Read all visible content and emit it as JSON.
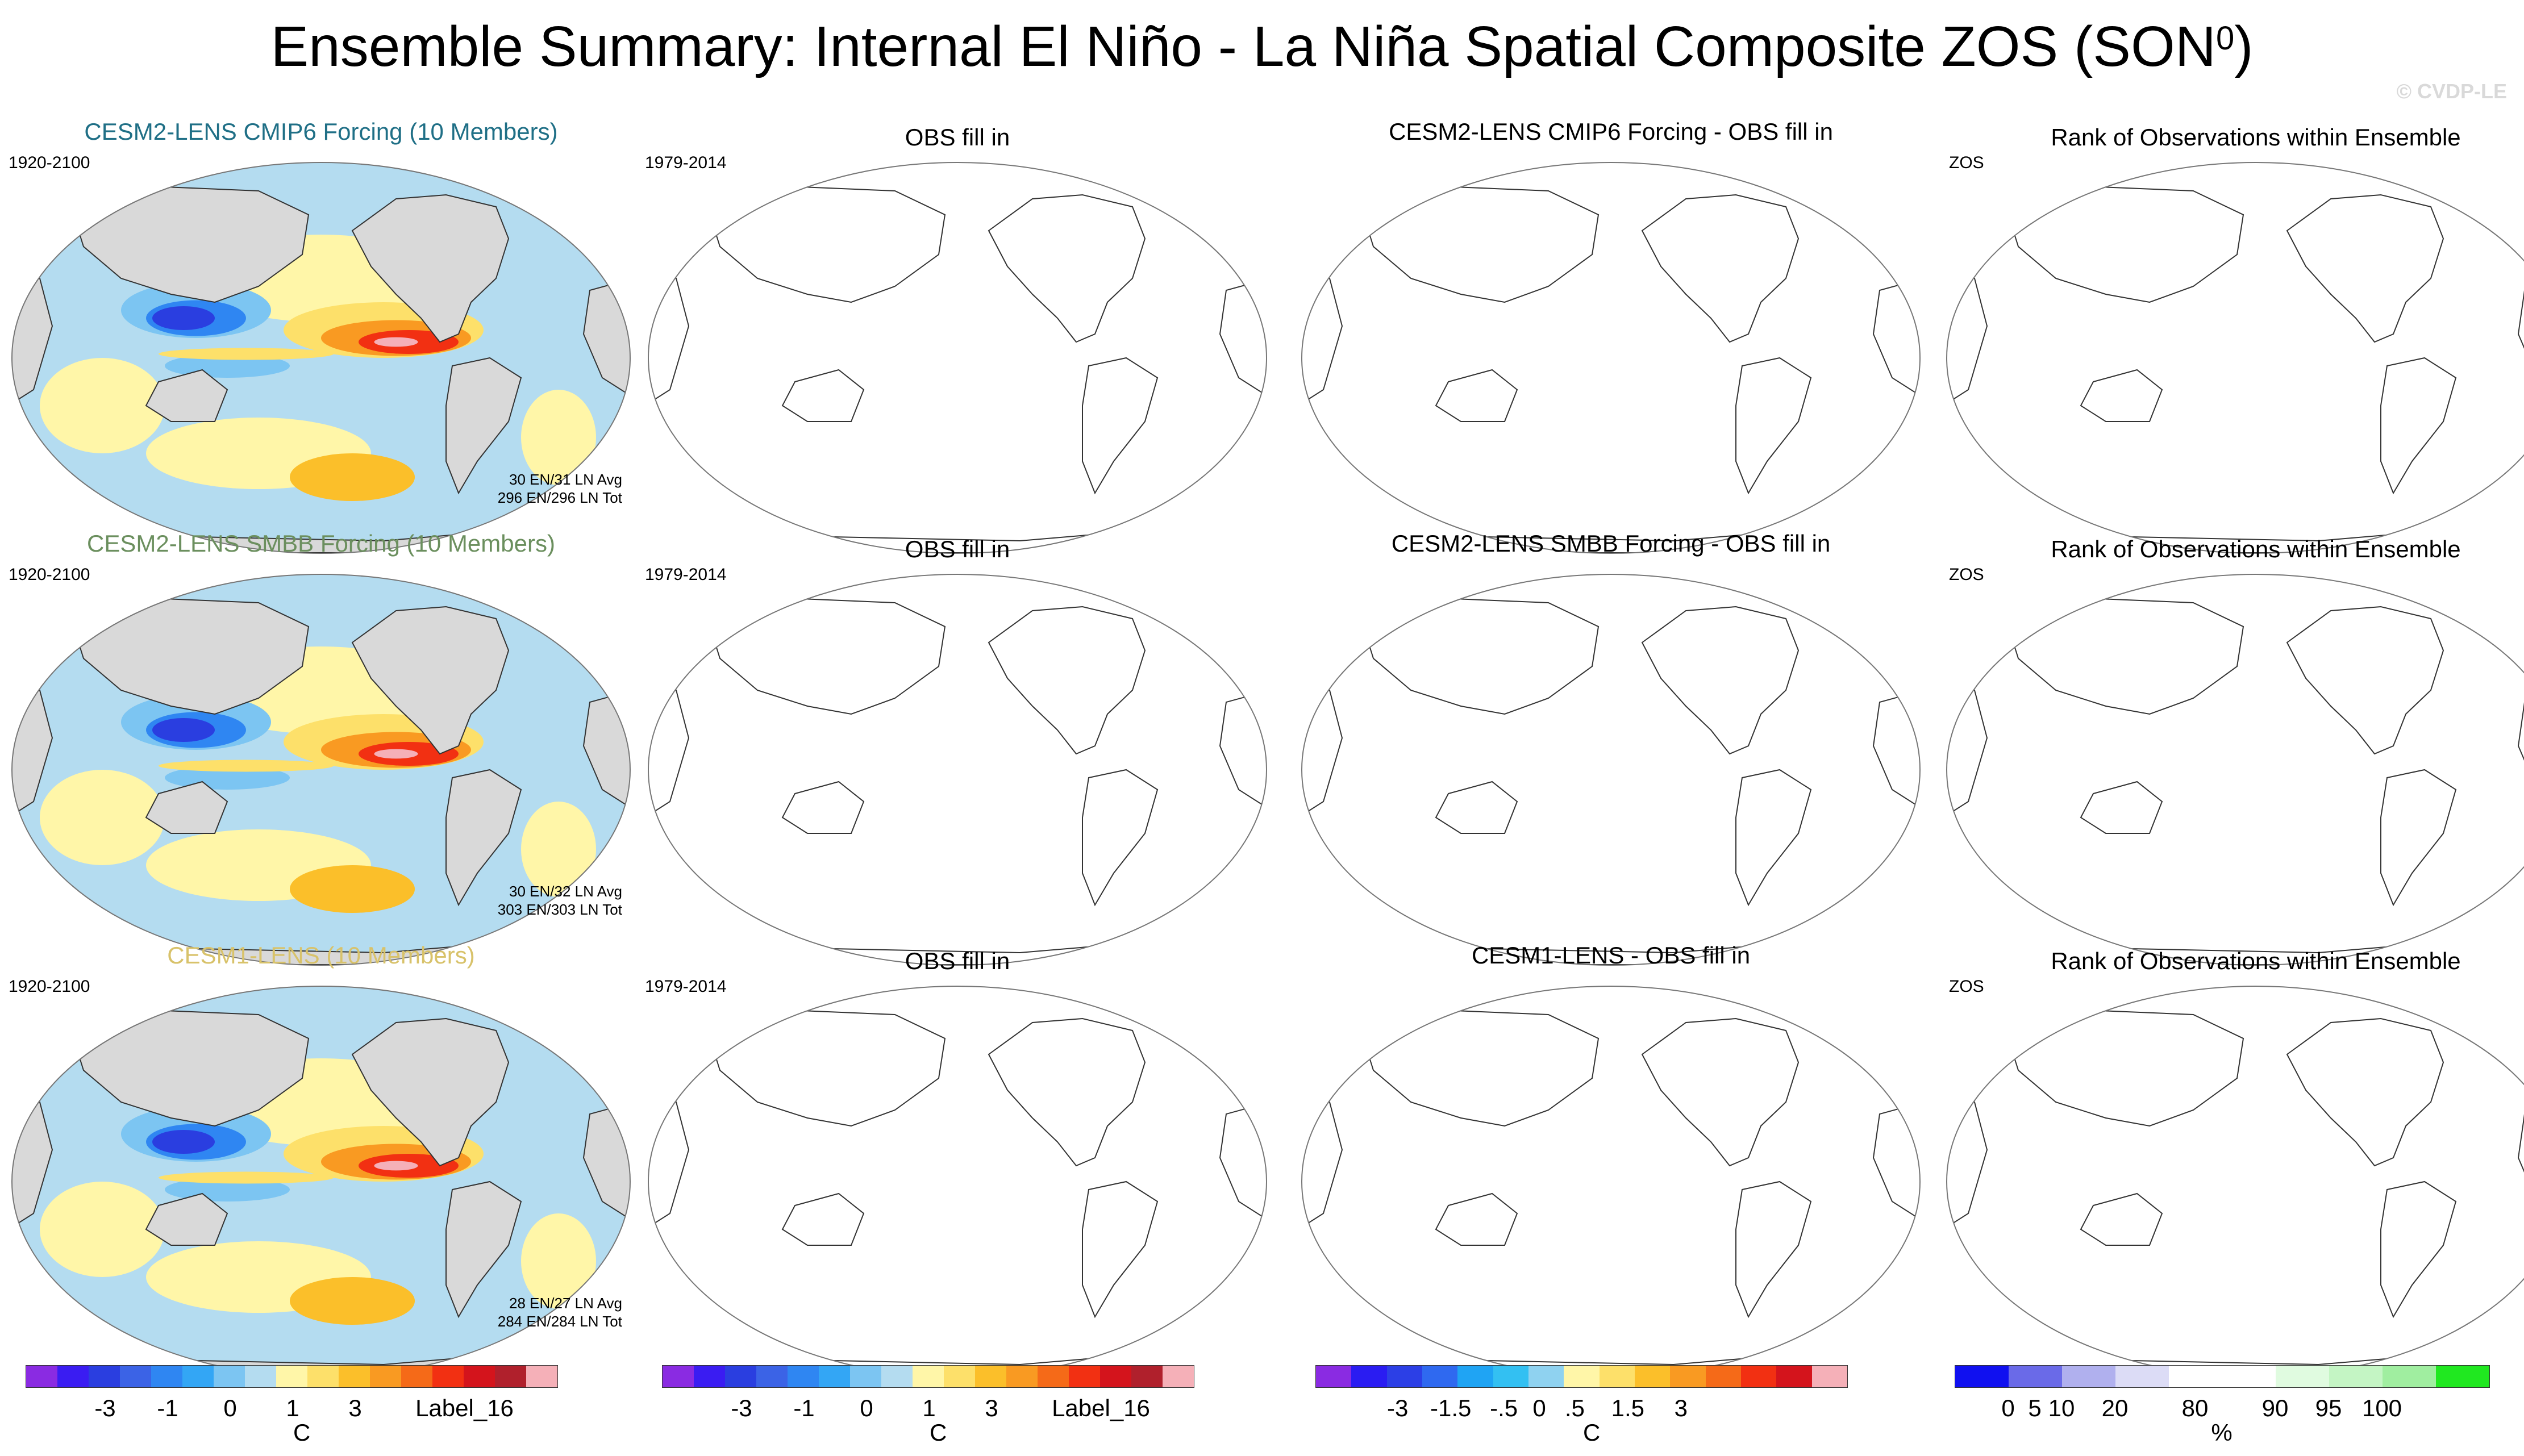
{
  "chart_data": {
    "type": "heatmap",
    "title": "Ensemble Summary: Internal El Niño - La Niña Spatial Composite ZOS (SON",
    "title_superscript": "0",
    "watermark": "© CVDP-LE",
    "rows": [
      {
        "model_title": "CESM2-LENS CMIP6 Forcing (10 Members)",
        "model_title_color": "#1f6f86",
        "model_years": "1920-2100",
        "stats_avg": "30 EN/31 LN Avg",
        "stats_tot": "296 EN/296 LN Tot",
        "obs_title": "OBS fill in",
        "obs_years": "1979-2014",
        "diff_title": "CESM2-LENS CMIP6 Forcing - OBS fill in",
        "rank_title": "Rank of Observations within Ensemble",
        "rank_var": "ZOS"
      },
      {
        "model_title": "CESM2-LENS SMBB Forcing (10 Members)",
        "model_title_color": "#6b8f5e",
        "model_years": "1920-2100",
        "stats_avg": "30 EN/32 LN Avg",
        "stats_tot": "303 EN/303 LN Tot",
        "obs_title": "OBS fill in",
        "obs_years": "1979-2014",
        "diff_title": "CESM2-LENS SMBB Forcing - OBS fill in",
        "rank_title": "Rank of Observations within Ensemble",
        "rank_var": "ZOS"
      },
      {
        "model_title": "CESM1-LENS (10 Members)",
        "model_title_color": "#d8c26a",
        "model_years": "1920-2100",
        "stats_avg": "28 EN/27 LN Avg",
        "stats_tot": "284 EN/284 LN Tot",
        "obs_title": "OBS fill in",
        "obs_years": "1979-2014",
        "diff_title": "CESM1-LENS - OBS fill in",
        "rank_title": "Rank of Observations within Ensemble",
        "rank_var": "ZOS"
      }
    ],
    "colorbars": [
      {
        "colors": [
          "#8a2be2",
          "#3a1cf2",
          "#2a3ee0",
          "#3b63e6",
          "#2f86f2",
          "#33a6f5",
          "#7cc5f2",
          "#b4dcf0",
          "#fff6a8",
          "#fde06a",
          "#fbbf2a",
          "#f99a22",
          "#f56a18",
          "#f23012",
          "#d4141c",
          "#b0202c",
          "#f5b0b8"
        ],
        "labels": [
          "-3",
          "-1",
          "0",
          "1",
          "3",
          "Label_16"
        ],
        "unit": "C"
      },
      {
        "colors": [
          "#8a2be2",
          "#3a1cf2",
          "#2a3ee0",
          "#3b63e6",
          "#2f86f2",
          "#33a6f5",
          "#7cc5f2",
          "#b4dcf0",
          "#fff6a8",
          "#fde06a",
          "#fbbf2a",
          "#f99a22",
          "#f56a18",
          "#f23012",
          "#d4141c",
          "#b0202c",
          "#f5b0b8"
        ],
        "labels": [
          "-3",
          "-1",
          "0",
          "1",
          "3",
          "Label_16"
        ],
        "unit": "C"
      },
      {
        "colors": [
          "#8a2be2",
          "#2a1cf2",
          "#2c3fe6",
          "#2f69f0",
          "#1fa4f4",
          "#33c0f2",
          "#8fd2f0",
          "#fff6a8",
          "#fde06a",
          "#fbbf2a",
          "#f99a22",
          "#f56a18",
          "#f23012",
          "#d4141c",
          "#f5b0b8"
        ],
        "labels": [
          "-3",
          "-1.5",
          "-.5",
          "0",
          ".5",
          "1.5",
          "3"
        ],
        "unit": "C"
      },
      {
        "colors": [
          "#1010f0",
          "#6a6ae8",
          "#b0b0ee",
          "#dcdcf6",
          "#ffffff",
          "#ffffff",
          "#e0fbe0",
          "#c4f5c4",
          "#a0eea0",
          "#20e820"
        ],
        "labels": [
          "0",
          "5",
          "10",
          "20",
          "80",
          "90",
          "95",
          "100"
        ],
        "unit": "%"
      }
    ]
  }
}
